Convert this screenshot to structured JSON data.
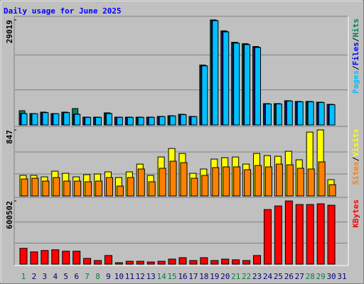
{
  "chart_data": [
    {
      "type": "bar",
      "title": "Daily usage for June 2025",
      "title_color": "#0000ff",
      "ylim": [
        0,
        29019
      ],
      "yticks": [
        29019
      ],
      "legend_separator": "/",
      "series": [
        {
          "name": "Hits",
          "color": "#00805c",
          "values": [
            3940,
            3150,
            3550,
            3150,
            3550,
            4530,
            2170,
            2170,
            3350,
            2170,
            2170,
            2170,
            2170,
            2360,
            2560,
            2950,
            2360,
            16550,
            29019,
            26000,
            22850,
            22460,
            21670,
            5900,
            5900,
            6700,
            6500,
            6500,
            6300,
            5710,
            null
          ]
        },
        {
          "name": "Files",
          "color": "#0000ff",
          "values": [
            3200,
            3100,
            3450,
            3100,
            3450,
            3000,
            2150,
            2150,
            3250,
            2150,
            2150,
            2150,
            2150,
            2340,
            2540,
            2900,
            2340,
            16400,
            28900,
            25800,
            22700,
            22300,
            21500,
            5850,
            5850,
            6650,
            6450,
            6450,
            6250,
            5650,
            null
          ]
        },
        {
          "name": "Pages",
          "color": "#00c0ff",
          "values": [
            3150,
            3100,
            3400,
            3100,
            3400,
            2950,
            2100,
            2100,
            3150,
            2100,
            2100,
            2100,
            2100,
            2300,
            2500,
            2850,
            2300,
            16300,
            28800,
            25700,
            22600,
            22200,
            21400,
            5800,
            5800,
            6600,
            6400,
            6400,
            6200,
            5600,
            null
          ]
        }
      ]
    },
    {
      "type": "bar",
      "ylim": [
        0,
        847
      ],
      "yticks": [
        847
      ],
      "legend_separator": "/",
      "series": [
        {
          "name": "Visits",
          "color": "#ffff00",
          "values": [
            264,
            264,
            245,
            318,
            291,
            245,
            273,
            282,
            309,
            236,
            309,
            409,
            264,
            500,
            609,
            545,
            291,
            346,
            473,
            491,
            500,
            409,
            545,
            518,
            509,
            573,
            464,
            819,
            847,
            209,
            null
          ]
        },
        {
          "name": "Sites",
          "color": "#ff8000",
          "values": [
            218,
            227,
            191,
            236,
            191,
            191,
            182,
            191,
            236,
            127,
            236,
            346,
            182,
            355,
            446,
            427,
            227,
            264,
            364,
            373,
            373,
            337,
            391,
            373,
            409,
            400,
            355,
            346,
            437,
            145,
            null
          ]
        }
      ]
    },
    {
      "type": "bar",
      "ylim": [
        0,
        600502
      ],
      "yticks": [
        600502
      ],
      "categories": [
        "1",
        "2",
        "3",
        "4",
        "5",
        "6",
        "7",
        "8",
        "9",
        "10",
        "11",
        "12",
        "13",
        "14",
        "15",
        "16",
        "17",
        "18",
        "19",
        "20",
        "21",
        "22",
        "23",
        "24",
        "25",
        "26",
        "27",
        "28",
        "29",
        "30",
        "31"
      ],
      "category_color": "#000080",
      "highlight_color": "#008040",
      "highlight_indices": [
        0,
        6,
        7,
        13,
        14,
        20,
        21,
        27,
        28
      ],
      "series": [
        {
          "name": "KBytes",
          "color": "#ff0000",
          "values": [
            150100,
            116000,
            129700,
            136500,
            122800,
            122800,
            54600,
            34100,
            81900,
            13600,
            27300,
            27300,
            20500,
            27300,
            47800,
            61400,
            34100,
            61400,
            34100,
            47800,
            40900,
            34100,
            81900,
            518600,
            552800,
            600502,
            566400,
            566400,
            573200,
            559600,
            null
          ]
        }
      ]
    }
  ]
}
